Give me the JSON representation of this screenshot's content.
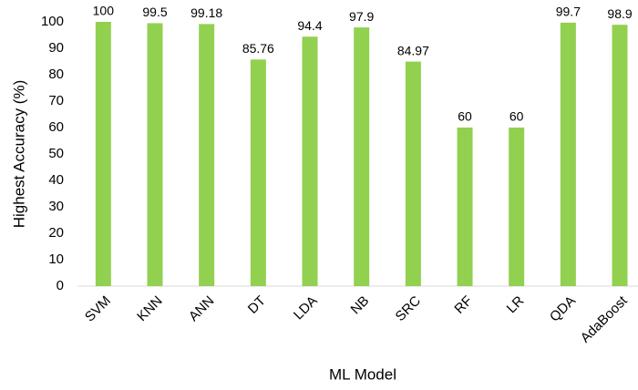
{
  "chart_data": {
    "type": "bar",
    "xlabel": "ML Model",
    "ylabel": "Highest Accuracy (%)",
    "categories": [
      "SVM",
      "KNN",
      "ANN",
      "DT",
      "LDA",
      "NB",
      "SRC",
      "RF",
      "LR",
      "QDA",
      "AdaBoost"
    ],
    "values": [
      100,
      99.5,
      99.18,
      85.76,
      94.4,
      97.9,
      84.97,
      60,
      60,
      99.7,
      98.9
    ],
    "color": "#92d050",
    "ylim": [
      0,
      100
    ],
    "yticks": [
      0,
      10,
      20,
      30,
      40,
      50,
      60,
      70,
      80,
      90,
      100
    ],
    "grid": false
  }
}
